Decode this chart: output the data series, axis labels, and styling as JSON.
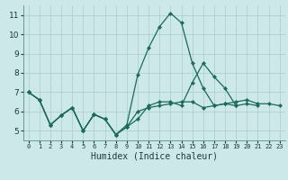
{
  "title": "",
  "xlabel": "Humidex (Indice chaleur)",
  "bg_color": "#cce8e8",
  "grid_color": "#aacccc",
  "line_color": "#1a6b5a",
  "xlim": [
    -0.5,
    23.5
  ],
  "ylim": [
    4.5,
    11.5
  ],
  "xticks": [
    0,
    1,
    2,
    3,
    4,
    5,
    6,
    7,
    8,
    9,
    10,
    11,
    12,
    13,
    14,
    15,
    16,
    17,
    18,
    19,
    20,
    21,
    22,
    23
  ],
  "yticks": [
    5,
    6,
    7,
    8,
    9,
    10,
    11
  ],
  "series": [
    [
      7.0,
      6.6,
      5.3,
      5.8,
      6.2,
      5.0,
      5.85,
      5.6,
      4.8,
      5.3,
      7.9,
      9.3,
      10.4,
      11.1,
      10.6,
      8.5,
      7.2,
      6.3,
      6.4,
      6.3,
      null,
      null,
      null,
      null
    ],
    [
      7.0,
      6.6,
      5.3,
      5.8,
      6.2,
      5.0,
      5.85,
      5.6,
      4.8,
      5.2,
      5.6,
      6.3,
      6.5,
      6.5,
      6.3,
      7.5,
      8.5,
      7.8,
      7.2,
      6.3,
      6.4,
      6.3,
      null,
      null
    ],
    [
      7.0,
      6.6,
      5.3,
      5.8,
      6.2,
      5.0,
      5.85,
      5.6,
      4.8,
      5.2,
      6.0,
      6.2,
      6.3,
      6.4,
      6.5,
      6.5,
      6.2,
      6.3,
      6.4,
      6.5,
      6.6,
      6.4,
      6.4,
      6.3
    ]
  ]
}
